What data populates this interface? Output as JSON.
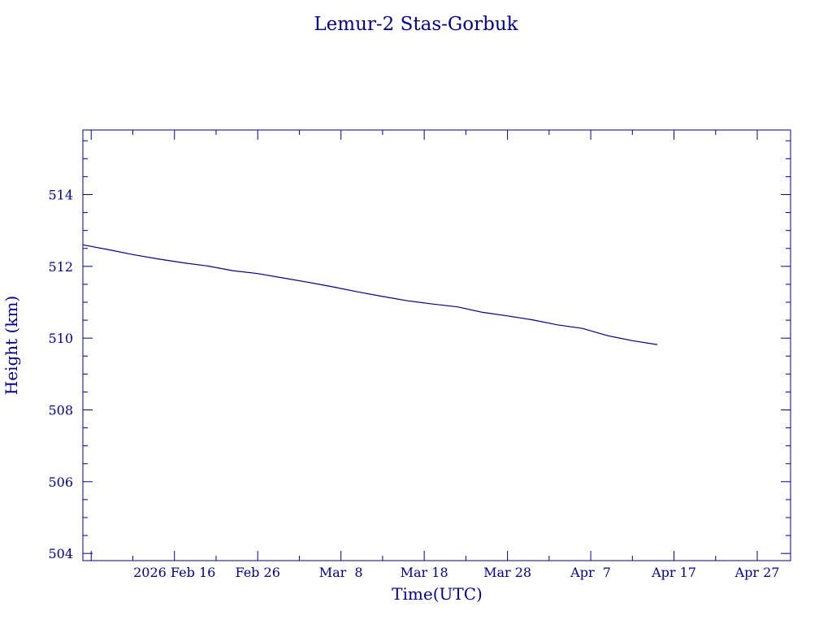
{
  "chart_data": {
    "type": "line",
    "title": "Lemur-2 Stas-Gorbuk",
    "xlabel": "Time(UTC)",
    "ylabel": "Height (km)",
    "x_axis_kind": "date",
    "xlim": [
      "2026-02-05",
      "2026-05-01"
    ],
    "ylim": [
      503.8,
      515.8
    ],
    "color": "#00008b",
    "grid": false,
    "legend": "none",
    "x_ticks": [
      {
        "date": "2026-02-16",
        "label": "2026 Feb 16"
      },
      {
        "date": "2026-02-26",
        "label": "Feb 26"
      },
      {
        "date": "2026-03-08",
        "label": "Mar  8"
      },
      {
        "date": "2026-03-18",
        "label": "Mar 18"
      },
      {
        "date": "2026-03-28",
        "label": "Mar 28"
      },
      {
        "date": "2026-04-07",
        "label": "Apr  7"
      },
      {
        "date": "2026-04-17",
        "label": "Apr 17"
      },
      {
        "date": "2026-04-27",
        "label": "Apr 27"
      }
    ],
    "y_ticks": [
      {
        "value": 504,
        "label": "504"
      },
      {
        "value": 506,
        "label": "506"
      },
      {
        "value": 508,
        "label": "508"
      },
      {
        "value": 510,
        "label": "510"
      },
      {
        "value": 512,
        "label": "512"
      },
      {
        "value": 514,
        "label": "514"
      }
    ],
    "series": [
      {
        "x": [
          "2026-02-05",
          "2026-02-08",
          "2026-02-11",
          "2026-02-14",
          "2026-02-17",
          "2026-02-20",
          "2026-02-23",
          "2026-02-26",
          "2026-03-01",
          "2026-03-04",
          "2026-03-07",
          "2026-03-10",
          "2026-03-13",
          "2026-03-16",
          "2026-03-19",
          "2026-03-22",
          "2026-03-25",
          "2026-03-28",
          "2026-03-31",
          "2026-04-03",
          "2026-04-06",
          "2026-04-09",
          "2026-04-12"
        ],
        "y": [
          512.6,
          512.47,
          512.33,
          512.21,
          512.1,
          512.01,
          511.88,
          511.8,
          511.68,
          511.56,
          511.43,
          511.29,
          511.16,
          511.04,
          510.95,
          510.87,
          510.72,
          510.62,
          510.51,
          510.37,
          510.27,
          510.07,
          509.93
        ]
      }
    ],
    "tail_point": {
      "x": "2026-04-15",
      "y": 509.82
    }
  }
}
